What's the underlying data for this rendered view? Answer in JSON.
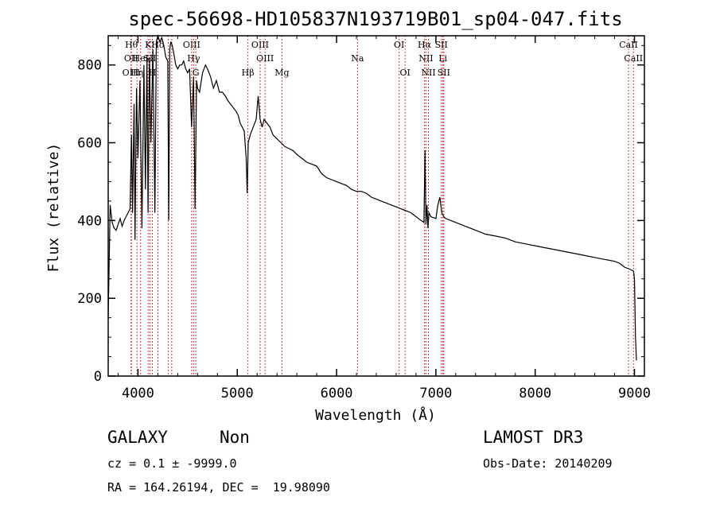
{
  "chart_data": {
    "type": "line",
    "title": "spec-56698-HD105837N193719B01_sp04-047.fits",
    "xlabel": "Wavelength (Å)",
    "ylabel": "Flux (relative)",
    "xlim": [
      3700,
      9100
    ],
    "ylim": [
      0,
      875
    ],
    "xticks": [
      4000,
      5000,
      6000,
      7000,
      8000,
      9000
    ],
    "yticks": [
      0,
      200,
      400,
      600,
      800
    ],
    "line_color": "#000000",
    "marker_color": "#cc0000",
    "spectrum": {
      "x": [
        3700,
        3720,
        3740,
        3760,
        3780,
        3800,
        3820,
        3840,
        3860,
        3880,
        3900,
        3920,
        3930,
        3935,
        3945,
        3960,
        3970,
        3985,
        4000,
        4020,
        4040,
        4060,
        4075,
        4090,
        4101,
        4115,
        4130,
        4150,
        4170,
        4185,
        4200,
        4220,
        4240,
        4260,
        4280,
        4300,
        4310,
        4320,
        4330,
        4345,
        4360,
        4380,
        4400,
        4420,
        4440,
        4460,
        4480,
        4500,
        4520,
        4540,
        4560,
        4575,
        4590,
        4600,
        4620,
        4650,
        4680,
        4700,
        4730,
        4760,
        4790,
        4820,
        4850,
        4880,
        4900,
        4930,
        4960,
        4990,
        5010,
        5030,
        5050,
        5070,
        5090,
        5100,
        5110,
        5130,
        5160,
        5190,
        5210,
        5230,
        5250,
        5270,
        5300,
        5330,
        5360,
        5400,
        5440,
        5480,
        5520,
        5560,
        5600,
        5650,
        5700,
        5750,
        5800,
        5850,
        5900,
        5950,
        6000,
        6050,
        6100,
        6150,
        6200,
        6250,
        6300,
        6350,
        6400,
        6450,
        6500,
        6550,
        6600,
        6650,
        6700,
        6750,
        6800,
        6850,
        6880,
        6890,
        6900,
        6910,
        6920,
        6930,
        6950,
        7000,
        7020,
        7040,
        7050,
        7060,
        7080,
        7100,
        7200,
        7300,
        7400,
        7500,
        7600,
        7700,
        7800,
        7900,
        8000,
        8100,
        8200,
        8300,
        8400,
        8500,
        8600,
        8700,
        8800,
        8850,
        8900,
        8950,
        8990,
        9000,
        9010,
        9020
      ],
      "y": [
        150,
        440,
        395,
        380,
        375,
        390,
        405,
        385,
        400,
        410,
        420,
        430,
        560,
        620,
        420,
        700,
        350,
        740,
        560,
        760,
        380,
        800,
        480,
        820,
        420,
        820,
        600,
        840,
        420,
        860,
        880,
        860,
        870,
        850,
        820,
        810,
        400,
        840,
        860,
        850,
        830,
        800,
        790,
        800,
        800,
        810,
        790,
        780,
        790,
        640,
        770,
        430,
        760,
        740,
        730,
        780,
        800,
        790,
        770,
        740,
        760,
        730,
        730,
        720,
        710,
        700,
        690,
        680,
        670,
        650,
        640,
        630,
        560,
        470,
        600,
        620,
        640,
        660,
        720,
        660,
        640,
        660,
        650,
        640,
        620,
        610,
        600,
        590,
        585,
        580,
        570,
        560,
        550,
        545,
        540,
        520,
        510,
        505,
        500,
        495,
        490,
        480,
        475,
        475,
        470,
        460,
        455,
        450,
        445,
        440,
        435,
        430,
        425,
        420,
        410,
        400,
        395,
        580,
        390,
        440,
        380,
        420,
        410,
        405,
        440,
        460,
        440,
        420,
        410,
        405,
        395,
        385,
        375,
        365,
        360,
        355,
        345,
        340,
        335,
        330,
        325,
        320,
        315,
        310,
        305,
        300,
        295,
        290,
        280,
        275,
        270,
        250,
        100,
        40
      ]
    },
    "lines": [
      {
        "x": 3934,
        "labels": [
          {
            "text": "Hθ",
            "row": 0
          }
        ]
      },
      {
        "x": 3930,
        "labels": [
          {
            "text": "OII",
            "row": 1
          },
          {
            "text": "OIII",
            "row": 2
          }
        ]
      },
      {
        "x": 3990,
        "labels": [
          {
            "text": "Hη",
            "row": 2
          }
        ]
      },
      {
        "x": 4026,
        "labels": [
          {
            "text": "HeI",
            "row": 1
          }
        ]
      },
      {
        "x": 4102,
        "labels": [
          {
            "text": "K",
            "row": 0
          }
        ]
      },
      {
        "x": 4120,
        "labels": [
          {
            "text": "SII",
            "row": 1
          }
        ]
      },
      {
        "x": 4145,
        "labels": [
          {
            "text": "H",
            "row": 2
          }
        ]
      },
      {
        "x": 4200,
        "labels": [
          {
            "text": "Hδ",
            "row": 0
          }
        ]
      },
      {
        "x": 4305,
        "labels": []
      },
      {
        "x": 4340,
        "labels": []
      },
      {
        "x": 4540,
        "labels": [
          {
            "text": "OIII",
            "row": 0
          }
        ]
      },
      {
        "x": 4560,
        "labels": [
          {
            "text": "Hγ",
            "row": 1
          }
        ]
      },
      {
        "x": 4582,
        "labels": [
          {
            "text": "G",
            "row": 2
          }
        ]
      },
      {
        "x": 5107,
        "labels": [
          {
            "text": "Hβ",
            "row": 2
          }
        ]
      },
      {
        "x": 5230,
        "labels": [
          {
            "text": "OIII",
            "row": 0
          }
        ]
      },
      {
        "x": 5280,
        "labels": [
          {
            "text": "OIII",
            "row": 1
          }
        ]
      },
      {
        "x": 5450,
        "labels": [
          {
            "text": "Mg",
            "row": 2
          }
        ]
      },
      {
        "x": 6210,
        "labels": [
          {
            "text": "Na",
            "row": 1
          }
        ]
      },
      {
        "x": 6630,
        "labels": [
          {
            "text": "OI",
            "row": 0
          }
        ]
      },
      {
        "x": 6690,
        "labels": [
          {
            "text": "OI",
            "row": 2
          }
        ]
      },
      {
        "x": 6885,
        "labels": [
          {
            "text": "Hα",
            "row": 0
          }
        ]
      },
      {
        "x": 6900,
        "labels": [
          {
            "text": "NII",
            "row": 1
          }
        ]
      },
      {
        "x": 6925,
        "labels": [
          {
            "text": "NII",
            "row": 2
          }
        ]
      },
      {
        "x": 7055,
        "labels": [
          {
            "text": "SII",
            "row": 0
          }
        ]
      },
      {
        "x": 7070,
        "labels": [
          {
            "text": "Li",
            "row": 1
          }
        ]
      },
      {
        "x": 7080,
        "labels": [
          {
            "text": "SII",
            "row": 2
          }
        ]
      },
      {
        "x": 8940,
        "labels": [
          {
            "text": "CaII",
            "row": 0
          }
        ]
      },
      {
        "x": 8990,
        "labels": [
          {
            "text": "CaII",
            "row": 1
          }
        ]
      }
    ]
  },
  "info": {
    "class_label": "GALAXY",
    "subclass": "Non",
    "survey": "LAMOST DR3",
    "cz": "cz = 0.1 ± -9999.0",
    "obs_date": "Obs-Date: 20140209",
    "coords": "RA = 164.26194, DEC =  19.98090"
  }
}
